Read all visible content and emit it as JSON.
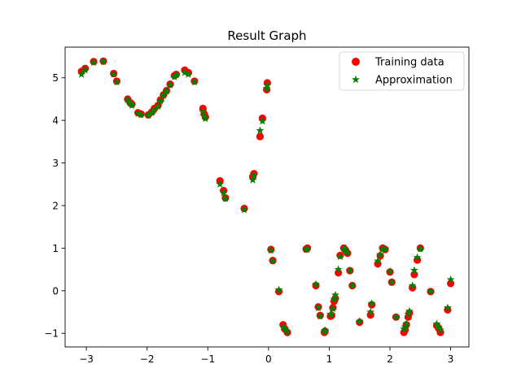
{
  "chart_data": {
    "type": "scatter",
    "title": "Result Graph",
    "xlabel": "",
    "ylabel": "",
    "xlim": [
      -3.35,
      3.3
    ],
    "ylim": [
      -1.32,
      5.72
    ],
    "xticks": [
      -3,
      -2,
      -1,
      0,
      1,
      2,
      3
    ],
    "yticks": [
      -1,
      0,
      1,
      2,
      3,
      4,
      5
    ],
    "xtick_labels": [
      "−3",
      "−2",
      "−1",
      "0",
      "1",
      "2",
      "3"
    ],
    "ytick_labels": [
      "−1",
      "0",
      "1",
      "2",
      "3",
      "4",
      "5"
    ],
    "legend_position": "top-right",
    "grid": false,
    "series": [
      {
        "name": "Training data",
        "marker": "circle",
        "color": "#ff0000",
        "points": [
          [
            -3.08,
            5.15
          ],
          [
            -3.02,
            5.22
          ],
          [
            -2.88,
            5.38
          ],
          [
            -2.72,
            5.39
          ],
          [
            -2.55,
            5.1
          ],
          [
            -2.5,
            4.92
          ],
          [
            -2.32,
            4.5
          ],
          [
            -2.28,
            4.42
          ],
          [
            -2.25,
            4.38
          ],
          [
            -2.15,
            4.18
          ],
          [
            -2.1,
            4.15
          ],
          [
            -1.98,
            4.13
          ],
          [
            -1.92,
            4.2
          ],
          [
            -1.88,
            4.28
          ],
          [
            -1.82,
            4.35
          ],
          [
            -1.78,
            4.48
          ],
          [
            -1.73,
            4.6
          ],
          [
            -1.68,
            4.7
          ],
          [
            -1.62,
            4.85
          ],
          [
            -1.55,
            5.05
          ],
          [
            -1.52,
            5.08
          ],
          [
            -1.38,
            5.18
          ],
          [
            -1.32,
            5.12
          ],
          [
            -1.22,
            4.92
          ],
          [
            -1.08,
            4.28
          ],
          [
            -1.06,
            4.15
          ],
          [
            -1.04,
            4.08
          ],
          [
            -0.8,
            2.58
          ],
          [
            -0.74,
            2.35
          ],
          [
            -0.71,
            2.18
          ],
          [
            -0.4,
            1.93
          ],
          [
            -0.26,
            2.68
          ],
          [
            -0.24,
            2.75
          ],
          [
            -0.14,
            3.62
          ],
          [
            -0.1,
            4.05
          ],
          [
            -0.03,
            4.72
          ],
          [
            -0.02,
            4.88
          ],
          [
            0.04,
            0.97
          ],
          [
            0.07,
            0.71
          ],
          [
            0.17,
            -0.02
          ],
          [
            0.24,
            -0.8
          ],
          [
            0.27,
            -0.9
          ],
          [
            0.31,
            -0.98
          ],
          [
            0.62,
            0.98
          ],
          [
            0.64,
            1.0
          ],
          [
            0.78,
            0.12
          ],
          [
            0.82,
            -0.38
          ],
          [
            0.85,
            -0.58
          ],
          [
            0.92,
            -0.98
          ],
          [
            0.93,
            -0.95
          ],
          [
            1.02,
            -0.6
          ],
          [
            1.04,
            -0.58
          ],
          [
            1.06,
            -0.4
          ],
          [
            1.08,
            -0.25
          ],
          [
            1.1,
            -0.18
          ],
          [
            1.15,
            0.42
          ],
          [
            1.18,
            0.83
          ],
          [
            1.24,
            1.0
          ],
          [
            1.27,
            0.95
          ],
          [
            1.3,
            0.88
          ],
          [
            1.34,
            0.47
          ],
          [
            1.38,
            0.12
          ],
          [
            1.5,
            -0.74
          ],
          [
            1.68,
            -0.57
          ],
          [
            1.7,
            -0.33
          ],
          [
            1.8,
            0.63
          ],
          [
            1.84,
            0.82
          ],
          [
            1.88,
            1.0
          ],
          [
            1.92,
            0.97
          ],
          [
            2.0,
            0.44
          ],
          [
            2.03,
            0.2
          ],
          [
            2.1,
            -0.62
          ],
          [
            2.23,
            -0.98
          ],
          [
            2.25,
            -0.92
          ],
          [
            2.27,
            -0.8
          ],
          [
            2.3,
            -0.62
          ],
          [
            2.32,
            -0.52
          ],
          [
            2.37,
            0.07
          ],
          [
            2.4,
            0.38
          ],
          [
            2.45,
            0.72
          ],
          [
            2.5,
            1.0
          ],
          [
            2.67,
            -0.02
          ],
          [
            2.77,
            -0.82
          ],
          [
            2.8,
            -0.88
          ],
          [
            2.83,
            -0.98
          ],
          [
            2.95,
            -0.45
          ],
          [
            3.0,
            0.17
          ]
        ]
      },
      {
        "name": "Approximation",
        "marker": "star",
        "color": "#008000",
        "points": [
          [
            -3.08,
            5.08
          ],
          [
            -3.02,
            5.18
          ],
          [
            -2.88,
            5.36
          ],
          [
            -2.72,
            5.38
          ],
          [
            -2.55,
            5.08
          ],
          [
            -2.5,
            4.9
          ],
          [
            -2.32,
            4.48
          ],
          [
            -2.28,
            4.4
          ],
          [
            -2.25,
            4.35
          ],
          [
            -2.15,
            4.16
          ],
          [
            -2.1,
            4.13
          ],
          [
            -1.98,
            4.12
          ],
          [
            -1.92,
            4.18
          ],
          [
            -1.88,
            4.25
          ],
          [
            -1.82,
            4.33
          ],
          [
            -1.78,
            4.45
          ],
          [
            -1.73,
            4.58
          ],
          [
            -1.68,
            4.68
          ],
          [
            -1.62,
            4.83
          ],
          [
            -1.55,
            5.02
          ],
          [
            -1.52,
            5.06
          ],
          [
            -1.38,
            5.12
          ],
          [
            -1.32,
            5.08
          ],
          [
            -1.22,
            4.9
          ],
          [
            -1.08,
            4.2
          ],
          [
            -1.06,
            4.1
          ],
          [
            -1.04,
            4.04
          ],
          [
            -0.8,
            2.5
          ],
          [
            -0.74,
            2.3
          ],
          [
            -0.71,
            2.16
          ],
          [
            -0.4,
            1.9
          ],
          [
            -0.26,
            2.6
          ],
          [
            -0.24,
            2.7
          ],
          [
            -0.14,
            3.76
          ],
          [
            -0.1,
            3.98
          ],
          [
            -0.03,
            4.75
          ],
          [
            -0.02,
            4.82
          ],
          [
            0.04,
            0.95
          ],
          [
            0.07,
            0.7
          ],
          [
            0.17,
            0.02
          ],
          [
            0.24,
            -0.85
          ],
          [
            0.27,
            -0.9
          ],
          [
            0.31,
            -0.97
          ],
          [
            0.62,
            0.97
          ],
          [
            0.64,
            0.97
          ],
          [
            0.78,
            0.15
          ],
          [
            0.82,
            -0.4
          ],
          [
            0.85,
            -0.6
          ],
          [
            0.92,
            -0.96
          ],
          [
            0.93,
            -0.93
          ],
          [
            1.02,
            -0.55
          ],
          [
            1.04,
            -0.55
          ],
          [
            1.06,
            -0.42
          ],
          [
            1.08,
            -0.2
          ],
          [
            1.1,
            -0.1
          ],
          [
            1.15,
            0.5
          ],
          [
            1.18,
            0.8
          ],
          [
            1.24,
            0.98
          ],
          [
            1.27,
            0.95
          ],
          [
            1.3,
            0.9
          ],
          [
            1.34,
            0.48
          ],
          [
            1.38,
            0.12
          ],
          [
            1.5,
            -0.72
          ],
          [
            1.68,
            -0.5
          ],
          [
            1.7,
            -0.3
          ],
          [
            1.8,
            0.7
          ],
          [
            1.84,
            0.85
          ],
          [
            1.88,
            0.98
          ],
          [
            1.92,
            0.97
          ],
          [
            2.0,
            0.45
          ],
          [
            2.03,
            0.2
          ],
          [
            2.1,
            -0.62
          ],
          [
            2.23,
            -0.9
          ],
          [
            2.25,
            -0.85
          ],
          [
            2.27,
            -0.78
          ],
          [
            2.3,
            -0.55
          ],
          [
            2.32,
            -0.48
          ],
          [
            2.37,
            0.12
          ],
          [
            2.4,
            0.48
          ],
          [
            2.45,
            0.78
          ],
          [
            2.5,
            0.98
          ],
          [
            2.67,
            -0.02
          ],
          [
            2.77,
            -0.78
          ],
          [
            2.8,
            -0.85
          ],
          [
            2.83,
            -0.92
          ],
          [
            2.95,
            -0.4
          ],
          [
            3.0,
            0.26
          ]
        ]
      }
    ]
  }
}
